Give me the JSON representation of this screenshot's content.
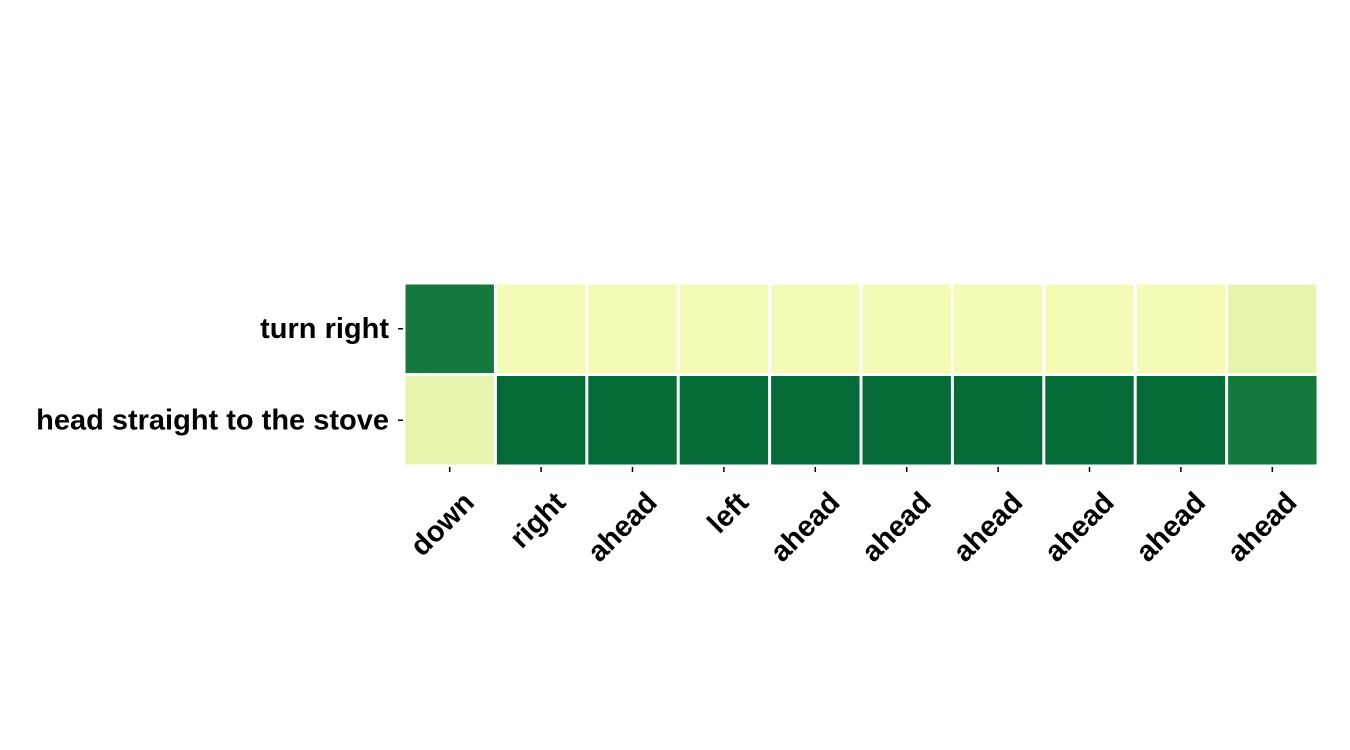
{
  "chart_data": {
    "type": "heatmap",
    "title": "",
    "xlabel": "",
    "ylabel": "",
    "rows": [
      "turn right",
      "head straight to the stove"
    ],
    "columns": [
      "down",
      "right",
      "ahead",
      "left",
      "ahead",
      "ahead",
      "ahead",
      "ahead",
      "ahead",
      "ahead"
    ],
    "values": [
      [
        0.9,
        0.02,
        0.02,
        0.02,
        0.02,
        0.02,
        0.02,
        0.02,
        0.02,
        0.1
      ],
      [
        0.1,
        0.98,
        0.98,
        0.98,
        0.98,
        0.98,
        0.98,
        0.98,
        0.98,
        0.9
      ]
    ],
    "colormap": "YlGn",
    "value_range": [
      0,
      1
    ],
    "colorbar": false,
    "grid": false
  }
}
